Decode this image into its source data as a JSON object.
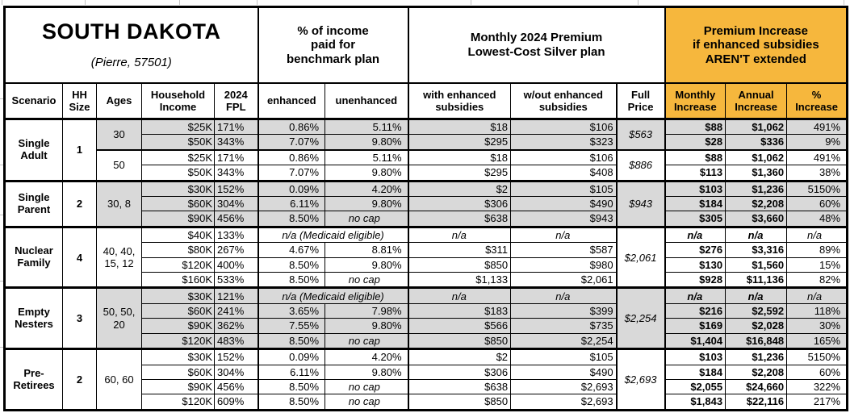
{
  "title": {
    "state": "SOUTH DAKOTA",
    "location": "(Pierre, 57501)"
  },
  "sections": {
    "income_pct": "% of income\npaid for\nbenchmark plan",
    "premium": "Monthly 2024 Premium\nLowest-Cost Silver plan",
    "increase": "Premium Increase\nif enhanced subsidies\nAREN'T extended"
  },
  "columns": {
    "scenario": "Scenario",
    "hh_size": "HH\nSize",
    "ages": "Ages",
    "income": "Household\nIncome",
    "fpl": "2024\nFPL",
    "enhanced": "enhanced",
    "unenhanced": "unenhanced",
    "with_sub": "with enhanced\nsubsidies",
    "wout_sub": "w/out enhanced\nsubsidies",
    "full_price": "Full\nPrice",
    "monthly": "Monthly\nIncrease",
    "annual": "Annual\nIncrease",
    "pct": "%\nIncrease"
  },
  "colors": {
    "orange": "#F6B73D",
    "shade": "#D9D9D9",
    "grid": "#000000"
  },
  "groups": [
    {
      "scenario": "Single Adult",
      "hh_size": "1",
      "age_blocks": [
        {
          "ages": "30",
          "shaded": true,
          "full_price": "$563",
          "rows": [
            {
              "income": "$25K",
              "fpl": "171%",
              "enhanced": "0.86%",
              "unenhanced": "5.11%",
              "with_sub": "$18",
              "wout_sub": "$106",
              "monthly": "$88",
              "annual": "$1,062",
              "pct": "491%"
            },
            {
              "income": "$50K",
              "fpl": "343%",
              "enhanced": "7.07%",
              "unenhanced": "9.80%",
              "with_sub": "$295",
              "wout_sub": "$323",
              "monthly": "$28",
              "annual": "$336",
              "pct": "9%"
            }
          ]
        },
        {
          "ages": "50",
          "shaded": false,
          "full_price": "$886",
          "rows": [
            {
              "income": "$25K",
              "fpl": "171%",
              "enhanced": "0.86%",
              "unenhanced": "5.11%",
              "with_sub": "$18",
              "wout_sub": "$106",
              "monthly": "$88",
              "annual": "$1,062",
              "pct": "491%"
            },
            {
              "income": "$50K",
              "fpl": "343%",
              "enhanced": "7.07%",
              "unenhanced": "9.80%",
              "with_sub": "$295",
              "wout_sub": "$408",
              "monthly": "$113",
              "annual": "$1,360",
              "pct": "38%"
            }
          ]
        }
      ]
    },
    {
      "scenario": "Single Parent",
      "hh_size": "2",
      "age_blocks": [
        {
          "ages": "30, 8",
          "shaded": true,
          "full_price": "$943",
          "rows": [
            {
              "income": "$30K",
              "fpl": "152%",
              "enhanced": "0.09%",
              "unenhanced": "4.20%",
              "with_sub": "$2",
              "wout_sub": "$105",
              "monthly": "$103",
              "annual": "$1,236",
              "pct": "5150%"
            },
            {
              "income": "$60K",
              "fpl": "304%",
              "enhanced": "6.11%",
              "unenhanced": "9.80%",
              "with_sub": "$306",
              "wout_sub": "$490",
              "monthly": "$184",
              "annual": "$2,208",
              "pct": "60%"
            },
            {
              "income": "$90K",
              "fpl": "456%",
              "enhanced": "8.50%",
              "unenhanced": "no cap",
              "with_sub": "$638",
              "wout_sub": "$943",
              "monthly": "$305",
              "annual": "$3,660",
              "pct": "48%"
            }
          ]
        }
      ]
    },
    {
      "scenario": "Nuclear Family",
      "hh_size": "4",
      "age_blocks": [
        {
          "ages": "40, 40,\n15, 12",
          "shaded": false,
          "full_price": "$2,061",
          "rows": [
            {
              "income": "$40K",
              "fpl": "133%",
              "note": "n/a (Medicaid eligible)",
              "with_sub": "n/a",
              "wout_sub": "n/a",
              "monthly": "n/a",
              "annual": "n/a",
              "pct": "n/a"
            },
            {
              "income": "$80K",
              "fpl": "267%",
              "enhanced": "4.67%",
              "unenhanced": "8.81%",
              "with_sub": "$311",
              "wout_sub": "$587",
              "monthly": "$276",
              "annual": "$3,316",
              "pct": "89%"
            },
            {
              "income": "$120K",
              "fpl": "400%",
              "enhanced": "8.50%",
              "unenhanced": "9.80%",
              "with_sub": "$850",
              "wout_sub": "$980",
              "monthly": "$130",
              "annual": "$1,560",
              "pct": "15%"
            },
            {
              "income": "$160K",
              "fpl": "533%",
              "enhanced": "8.50%",
              "unenhanced": "no cap",
              "with_sub": "$1,133",
              "wout_sub": "$2,061",
              "monthly": "$928",
              "annual": "$11,136",
              "pct": "82%"
            }
          ]
        }
      ]
    },
    {
      "scenario": "Empty Nesters",
      "hh_size": "3",
      "age_blocks": [
        {
          "ages": "50, 50,\n20",
          "shaded": true,
          "full_price": "$2,254",
          "rows": [
            {
              "income": "$30K",
              "fpl": "121%",
              "note": "n/a (Medicaid eligible)",
              "with_sub": "n/a",
              "wout_sub": "n/a",
              "monthly": "n/a",
              "annual": "n/a",
              "pct": "n/a"
            },
            {
              "income": "$60K",
              "fpl": "241%",
              "enhanced": "3.65%",
              "unenhanced": "7.98%",
              "with_sub": "$183",
              "wout_sub": "$399",
              "monthly": "$216",
              "annual": "$2,592",
              "pct": "118%"
            },
            {
              "income": "$90K",
              "fpl": "362%",
              "enhanced": "7.55%",
              "unenhanced": "9.80%",
              "with_sub": "$566",
              "wout_sub": "$735",
              "monthly": "$169",
              "annual": "$2,028",
              "pct": "30%"
            },
            {
              "income": "$120K",
              "fpl": "483%",
              "enhanced": "8.50%",
              "unenhanced": "no cap",
              "with_sub": "$850",
              "wout_sub": "$2,254",
              "monthly": "$1,404",
              "annual": "$16,848",
              "pct": "165%"
            }
          ]
        }
      ]
    },
    {
      "scenario": "Pre-Retirees",
      "hh_size": "2",
      "age_blocks": [
        {
          "ages": "60, 60",
          "shaded": false,
          "full_price": "$2,693",
          "rows": [
            {
              "income": "$30K",
              "fpl": "152%",
              "enhanced": "0.09%",
              "unenhanced": "4.20%",
              "with_sub": "$2",
              "wout_sub": "$105",
              "monthly": "$103",
              "annual": "$1,236",
              "pct": "5150%"
            },
            {
              "income": "$60K",
              "fpl": "304%",
              "enhanced": "6.11%",
              "unenhanced": "9.80%",
              "with_sub": "$306",
              "wout_sub": "$490",
              "monthly": "$184",
              "annual": "$2,208",
              "pct": "60%"
            },
            {
              "income": "$90K",
              "fpl": "456%",
              "enhanced": "8.50%",
              "unenhanced": "no cap",
              "with_sub": "$638",
              "wout_sub": "$2,693",
              "monthly": "$2,055",
              "annual": "$24,660",
              "pct": "322%"
            },
            {
              "income": "$120K",
              "fpl": "609%",
              "enhanced": "8.50%",
              "unenhanced": "no cap",
              "with_sub": "$850",
              "wout_sub": "$2,693",
              "monthly": "$1,843",
              "annual": "$22,116",
              "pct": "217%"
            }
          ]
        }
      ]
    }
  ]
}
